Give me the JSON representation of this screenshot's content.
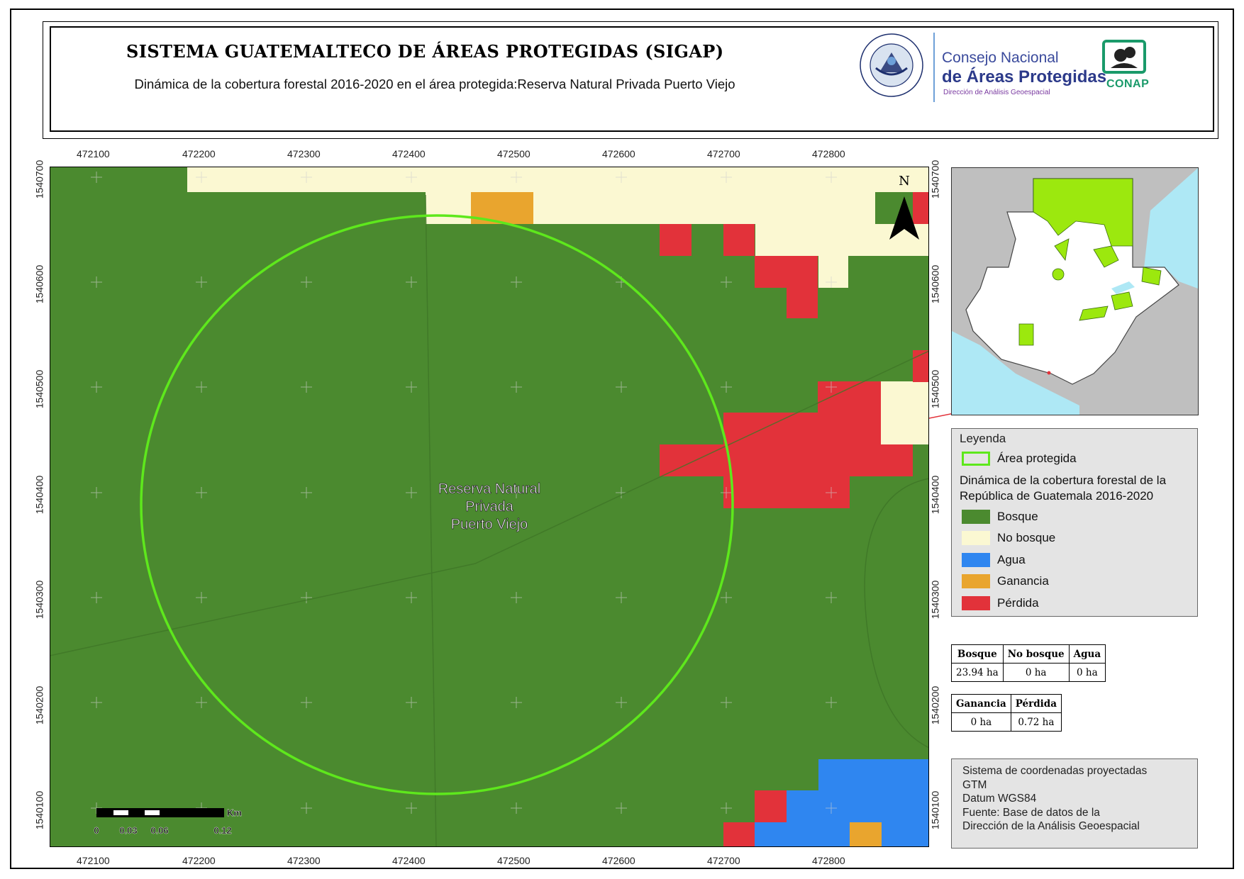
{
  "header": {
    "title": "SISTEMA GUATEMALTECO DE ÁREAS PROTEGIDAS  (SIGAP)",
    "subtitle": "Dinámica de la cobertura forestal 2016-2020 en el área protegida:Reserva Natural Privada Puerto Viejo"
  },
  "logos": {
    "seal_text_top": "GOBIERNO DE LA REPÚBLICA",
    "seal_text_bottom": "GUATEMALA",
    "consejo_line1": "Consejo Nacional",
    "consejo_line2": "de Áreas Protegidas",
    "consejo_line3": "Dirección de Análisis Geoespacial",
    "conap": "CONAP"
  },
  "map": {
    "x_ticks": [
      "472100",
      "472200",
      "472300",
      "472400",
      "472500",
      "472600",
      "472700",
      "472800"
    ],
    "y_ticks": [
      "1540700",
      "1540600",
      "1540500",
      "1540400",
      "1540300",
      "1540200",
      "1540100"
    ],
    "area_label": [
      "Reserva Natural",
      "Privada",
      "Puerto Viejo"
    ],
    "north_label": "N",
    "scale_bar": {
      "unit": "Km",
      "labels": [
        "0",
        "0.03",
        "0.06",
        "0.12"
      ]
    },
    "colors": {
      "bosque": "#4b8a2f",
      "no_bosque": "#fbf8d2",
      "agua": "#2f86f0",
      "ganancia": "#e9a52e",
      "perdida": "#e2323a",
      "area_outline": "#5ee81c"
    }
  },
  "legend": {
    "title": "Leyenda",
    "protected_area": "Área protegida",
    "dynamics_title": "Dinámica de la cobertura forestal de la República de Guatemala 2016-2020",
    "classes": [
      {
        "label": "Bosque",
        "color": "#4b8a2f"
      },
      {
        "label": "No bosque",
        "color": "#fbf8d2"
      },
      {
        "label": "Agua",
        "color": "#2f86f0"
      },
      {
        "label": "Ganancia",
        "color": "#e9a52e"
      },
      {
        "label": "Pérdida",
        "color": "#e2323a"
      }
    ]
  },
  "stats1": {
    "headers": [
      "Bosque",
      "No bosque",
      "Agua"
    ],
    "values": [
      "23.94 ha",
      "0 ha",
      "0 ha"
    ]
  },
  "stats2": {
    "headers": [
      "Ganancia",
      "Pérdida"
    ],
    "values": [
      "0 ha",
      "0.72 ha"
    ]
  },
  "crs": {
    "lines": [
      "Sistema de coordenadas proyectadas",
      "GTM",
      "Datum WGS84",
      "Fuente: Base de datos de la",
      "Dirección de la Análisis Geoespacial"
    ]
  }
}
